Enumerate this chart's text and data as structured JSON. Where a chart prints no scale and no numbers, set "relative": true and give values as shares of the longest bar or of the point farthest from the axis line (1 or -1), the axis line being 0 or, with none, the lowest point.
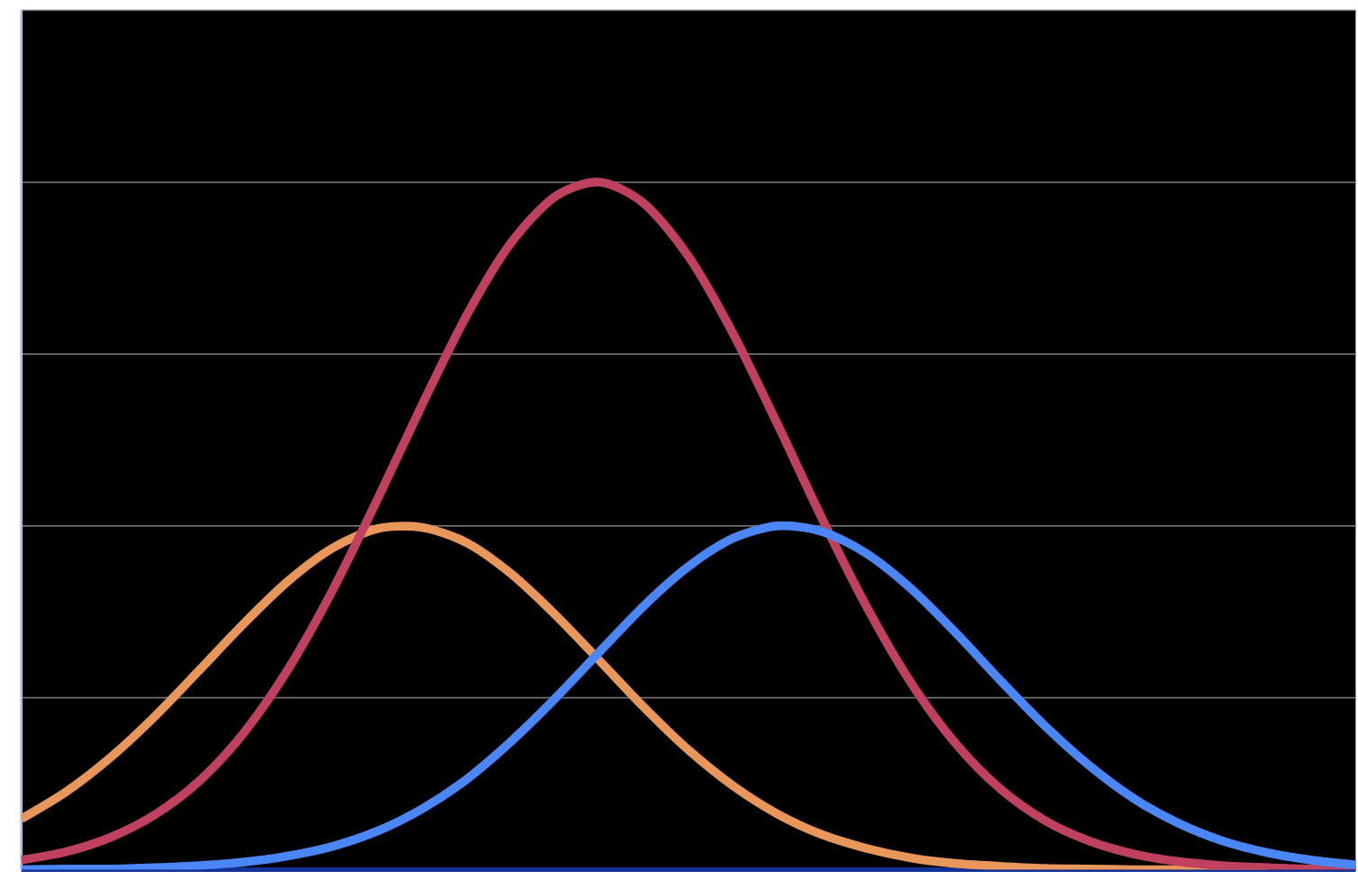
{
  "chart_data": {
    "type": "line",
    "relative": true,
    "grid": "y",
    "marker": "none",
    "line_style": "solid",
    "categories": [
      null,
      null,
      null,
      null,
      null,
      null,
      null,
      null,
      null,
      null,
      null,
      null,
      null,
      null,
      null,
      null,
      null,
      null,
      null,
      null,
      null,
      null,
      null,
      null,
      null,
      null,
      null,
      null,
      null,
      null,
      null
    ],
    "series": [
      {
        "color": "#e8965a",
        "values": [
          0.074,
          0.113,
          0.163,
          0.223,
          0.29,
          0.358,
          0.42,
          0.468,
          0.496,
          0.498,
          0.476,
          0.431,
          0.371,
          0.304,
          0.236,
          0.174,
          0.122,
          0.081,
          0.051,
          0.031,
          0.017,
          0.009,
          0.005,
          0.002,
          0.001,
          0.0,
          0.0,
          0.0,
          0.0,
          null,
          null
        ]
      },
      {
        "color": "#c0405f",
        "values": [
          0.014,
          0.026,
          0.047,
          0.08,
          0.129,
          0.199,
          0.292,
          0.407,
          0.538,
          0.675,
          0.805,
          0.911,
          0.979,
          1.0,
          0.969,
          0.892,
          0.78,
          0.648,
          0.511,
          0.383,
          0.272,
          0.184,
          0.118,
          0.072,
          0.042,
          0.023,
          0.012,
          0.006,
          0.003,
          0.001,
          0.001
        ]
      },
      {
        "color": "#4a86f5",
        "values": [
          0.0,
          0.001,
          0.001,
          0.003,
          0.006,
          0.011,
          0.02,
          0.034,
          0.056,
          0.088,
          0.131,
          0.186,
          0.249,
          0.317,
          0.384,
          0.441,
          0.482,
          0.5,
          0.492,
          0.46,
          0.409,
          0.345,
          0.276,
          0.21,
          0.152,
          0.104,
          0.068,
          0.042,
          0.025,
          0.014,
          0.007
        ]
      }
    ]
  }
}
